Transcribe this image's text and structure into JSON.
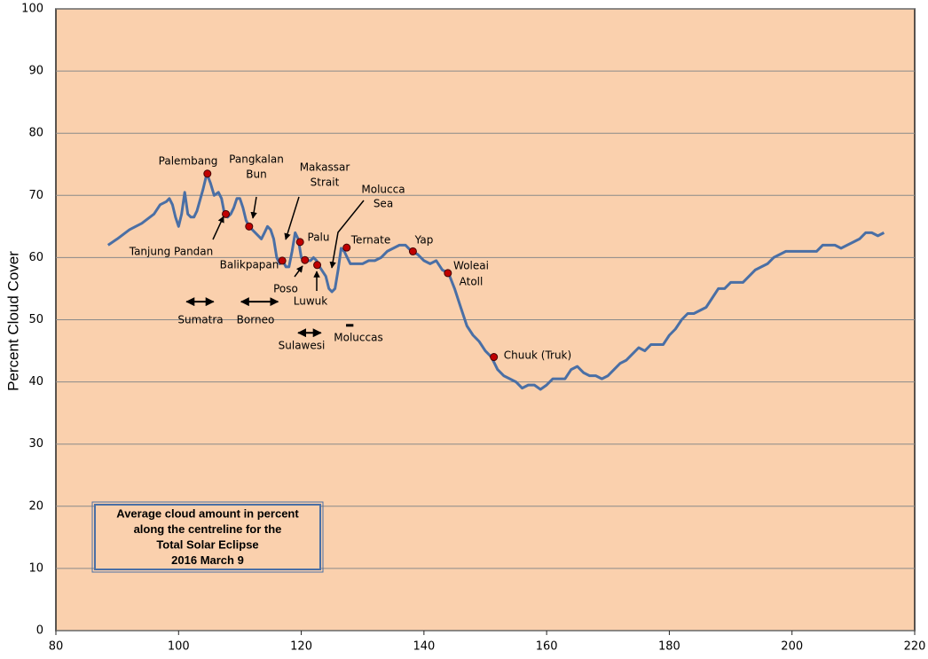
{
  "chart_data": {
    "type": "line",
    "y_label": "Percent Cloud Cover",
    "xlim": [
      80,
      220
    ],
    "xticks": [
      80,
      100,
      120,
      140,
      160,
      180,
      200,
      220
    ],
    "ylim": [
      0,
      100
    ],
    "yticks": [
      0,
      10,
      20,
      30,
      40,
      50,
      60,
      70,
      80,
      90,
      100
    ],
    "grid": true,
    "color": "#4a6fa5",
    "x": [
      88.5,
      90,
      92,
      94,
      96,
      97,
      98,
      98.5,
      99,
      99.5,
      100,
      100.5,
      101,
      101.5,
      102,
      102.5,
      103,
      104,
      104.6,
      105.2,
      105.8,
      106.5,
      107,
      107.5,
      108,
      108.5,
      109,
      109.5,
      110,
      110.5,
      111,
      111.5,
      112,
      113,
      113.5,
      114,
      114.5,
      115,
      115.5,
      116,
      116.5,
      117,
      117.5,
      118,
      118.5,
      119,
      119.5,
      120,
      120.5,
      121,
      121.5,
      122,
      122.5,
      123,
      124,
      124.5,
      125,
      125.5,
      126,
      126.5,
      127,
      127.5,
      128,
      129,
      130,
      131,
      132,
      133,
      134,
      135,
      136,
      137,
      138,
      139,
      140,
      141,
      142,
      143,
      144,
      145,
      146,
      147,
      148,
      149,
      150,
      151,
      152,
      153,
      154,
      155,
      156,
      157,
      158,
      159,
      160,
      161,
      162,
      163,
      164,
      165,
      166,
      167,
      168,
      169,
      170,
      171,
      172,
      173,
      174,
      175,
      176,
      177,
      178,
      179,
      180,
      181,
      182,
      183,
      184,
      185,
      186,
      187,
      188,
      189,
      190,
      191,
      192,
      193,
      194,
      195,
      196,
      197,
      198,
      199,
      200,
      201,
      202,
      203,
      204,
      205,
      206,
      207,
      208,
      209,
      210,
      211,
      212,
      213,
      214,
      215
    ],
    "values": [
      62,
      63,
      64.5,
      65.5,
      67,
      68.5,
      69,
      69.5,
      68.5,
      66.5,
      65,
      67,
      70.5,
      67,
      66.5,
      66.5,
      67.5,
      71,
      73.5,
      72,
      70,
      70.5,
      69.5,
      67,
      66.5,
      67,
      68,
      69.5,
      69.5,
      68,
      66,
      65,
      64.5,
      63.5,
      63,
      64,
      65,
      64.5,
      63,
      60,
      59,
      59.5,
      58.5,
      58.5,
      61,
      64,
      63,
      60,
      59.5,
      59.5,
      59.5,
      60,
      59.5,
      58.5,
      57,
      55,
      54.5,
      55,
      58,
      61.5,
      61,
      60,
      59,
      59,
      59,
      59.5,
      59.5,
      60,
      61,
      61.5,
      62,
      62,
      61,
      60.5,
      59.5,
      59,
      59.5,
      58,
      57.5,
      55,
      52,
      49,
      47.5,
      46.5,
      45,
      44,
      42,
      41,
      40.5,
      40,
      39,
      39.5,
      39.5,
      38.8,
      39.5,
      40.5,
      40.5,
      40.5,
      42,
      42.5,
      41.5,
      41,
      41,
      40.5,
      41,
      42,
      43,
      43.5,
      44.5,
      45.5,
      45,
      46,
      46,
      46,
      47.5,
      48.5,
      50,
      51,
      51,
      51.5,
      52,
      53.5,
      55,
      55,
      56,
      56,
      56,
      57,
      58,
      58.5,
      59,
      60,
      60.5,
      61,
      61,
      61,
      61,
      61,
      61,
      62,
      62,
      62,
      61.5,
      62,
      62.5,
      63,
      64,
      64,
      63.5,
      64
    ],
    "point_color": "#c00000",
    "points": [
      {
        "label": [
          "Palembang"
        ],
        "x": 104.7,
        "y": 73.5
      },
      {
        "label": [
          "Tanjung Pandan"
        ],
        "x": 107.7,
        "y": 67
      },
      {
        "label": [
          "Pangkalan",
          "Bun"
        ],
        "x": 111.5,
        "y": 65
      },
      {
        "label": [
          "Balikpapan"
        ],
        "x": 116.9,
        "y": 59.5
      },
      {
        "label": [
          "Palu"
        ],
        "x": 119.8,
        "y": 62.5
      },
      {
        "label": [
          "Poso"
        ],
        "x": 120.6,
        "y": 59.6
      },
      {
        "label": [
          "Luwuk"
        ],
        "x": 122.6,
        "y": 58.8
      },
      {
        "label": [
          "Ternate"
        ],
        "x": 127.4,
        "y": 61.6
      },
      {
        "label": [
          "Yap"
        ],
        "x": 138.2,
        "y": 61
      },
      {
        "label": [
          "Woleai",
          "Atoll"
        ],
        "x": 143.9,
        "y": 57.5
      },
      {
        "label": [
          "Chuuk (Truk)"
        ],
        "x": 151.4,
        "y": 44
      }
    ],
    "annotations": [
      {
        "label": [
          "Makassar",
          "Strait"
        ]
      },
      {
        "label": [
          "Molucca",
          "Sea"
        ]
      }
    ],
    "ranges": [
      {
        "label": "Sumatra",
        "x": [
          101.3,
          105.7
        ],
        "y": 52.9
      },
      {
        "label": "Borneo",
        "x": [
          110.2,
          116.2
        ],
        "y": 52.9
      },
      {
        "label": "Sulawesi",
        "x": [
          119.5,
          123.2
        ],
        "y": 47.9
      },
      {
        "label": "Moluccas",
        "x": [
          127.3,
          128.5
        ],
        "y": 49.1
      }
    ],
    "box_text": [
      "Average cloud amount in percent",
      "along the centreline for the",
      "Total Solar Eclipse",
      "2016 March 9"
    ]
  }
}
